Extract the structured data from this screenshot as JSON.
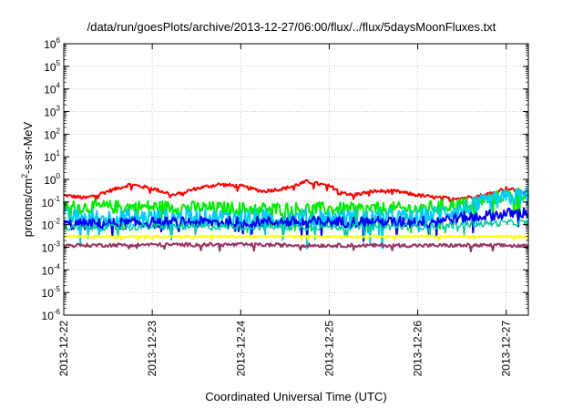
{
  "chart_data": {
    "type": "line",
    "title": "/data/run/goesPlots/archive/2013-12-27/06:00/flux/../flux/5daysMoonFluxes.txt",
    "xlabel": "Coordinated Universal Time (UTC)",
    "ylabel": {
      "prefix": "protons/cm",
      "sup": "2",
      "suffix": "-s-sr-MeV"
    },
    "y_scale": "log",
    "ylim": [
      1e-06,
      1000000.0
    ],
    "y_ticks": [
      {
        "base": "10",
        "exp": "-6",
        "value": 1e-06
      },
      {
        "base": "10",
        "exp": "-5",
        "value": 1e-05
      },
      {
        "base": "10",
        "exp": "-4",
        "value": 0.0001
      },
      {
        "base": "10",
        "exp": "-3",
        "value": 0.001
      },
      {
        "base": "10",
        "exp": "-2",
        "value": 0.01
      },
      {
        "base": "10",
        "exp": "-1",
        "value": 0.1
      },
      {
        "base": "10",
        "exp": "0",
        "value": 1
      },
      {
        "base": "10",
        "exp": "1",
        "value": 10
      },
      {
        "base": "10",
        "exp": "2",
        "value": 100
      },
      {
        "base": "10",
        "exp": "3",
        "value": 1000
      },
      {
        "base": "10",
        "exp": "4",
        "value": 10000
      },
      {
        "base": "10",
        "exp": "5",
        "value": 100000
      },
      {
        "base": "10",
        "exp": "6",
        "value": 1000000
      }
    ],
    "xlim": [
      "2013-12-22",
      "2013-12-27 06:00"
    ],
    "x_ticks": [
      "2013-12-22",
      "2013-12-23",
      "2013-12-24",
      "2013-12-25",
      "2013-12-26",
      "2013-12-27"
    ],
    "grid": true,
    "series": [
      {
        "color": "#ff0000",
        "width": 2,
        "anchors": [
          [
            "2013-12-22 00:00",
            0.2
          ],
          [
            "2013-12-22 06:00",
            0.15
          ],
          [
            "2013-12-22 12:00",
            0.3
          ],
          [
            "2013-12-22 18:00",
            0.6
          ],
          [
            "2013-12-23 00:00",
            0.4
          ],
          [
            "2013-12-23 06:00",
            0.2
          ],
          [
            "2013-12-23 12:00",
            0.4
          ],
          [
            "2013-12-23 18:00",
            0.6
          ],
          [
            "2013-12-24 00:00",
            0.5
          ],
          [
            "2013-12-24 06:00",
            0.3
          ],
          [
            "2013-12-24 12:00",
            0.4
          ],
          [
            "2013-12-24 18:00",
            0.8
          ],
          [
            "2013-12-25 00:00",
            0.5
          ],
          [
            "2013-12-25 06:00",
            0.2
          ],
          [
            "2013-12-25 12:00",
            0.3
          ],
          [
            "2013-12-25 18:00",
            0.3
          ],
          [
            "2013-12-26 00:00",
            0.2
          ],
          [
            "2013-12-26 06:00",
            0.15
          ],
          [
            "2013-12-26 12:00",
            0.15
          ],
          [
            "2013-12-26 18:00",
            0.2
          ],
          [
            "2013-12-27 00:00",
            0.4
          ],
          [
            "2013-12-27 06:00",
            0.25
          ]
        ],
        "noise": 0.08
      },
      {
        "color": "#00ee00",
        "width": 2,
        "anchors": [
          [
            "2013-12-22 00:00",
            0.06
          ],
          [
            "2013-12-23 00:00",
            0.06
          ],
          [
            "2013-12-24 00:00",
            0.05
          ],
          [
            "2013-12-25 00:00",
            0.05
          ],
          [
            "2013-12-26 00:00",
            0.05
          ],
          [
            "2013-12-26 12:00",
            0.08
          ],
          [
            "2013-12-27 00:00",
            0.2
          ],
          [
            "2013-12-27 06:00",
            0.25
          ]
        ],
        "noise": 0.3
      },
      {
        "color": "#00ccff",
        "width": 2,
        "anchors": [
          [
            "2013-12-22 00:00",
            0.02
          ],
          [
            "2013-12-23 00:00",
            0.02
          ],
          [
            "2013-12-24 00:00",
            0.02
          ],
          [
            "2013-12-25 00:00",
            0.02
          ],
          [
            "2013-12-26 00:00",
            0.02
          ],
          [
            "2013-12-26 12:00",
            0.05
          ],
          [
            "2013-12-27 00:00",
            0.15
          ],
          [
            "2013-12-27 06:00",
            0.2
          ]
        ],
        "noise": 0.4
      },
      {
        "color": "#0000ff",
        "width": 2,
        "anchors": [
          [
            "2013-12-22 00:00",
            0.01
          ],
          [
            "2013-12-23 00:00",
            0.012
          ],
          [
            "2013-12-24 00:00",
            0.013
          ],
          [
            "2013-12-25 00:00",
            0.013
          ],
          [
            "2013-12-26 00:00",
            0.013
          ],
          [
            "2013-12-26 12:00",
            0.02
          ],
          [
            "2013-12-27 00:00",
            0.03
          ],
          [
            "2013-12-27 06:00",
            0.035
          ]
        ],
        "noise": 0.25
      },
      {
        "color": "#00cc99",
        "width": 1.5,
        "anchors": [
          [
            "2013-12-22 00:00",
            0.007
          ],
          [
            "2013-12-23 00:00",
            0.008
          ],
          [
            "2013-12-24 00:00",
            0.008
          ],
          [
            "2013-12-25 00:00",
            0.008
          ],
          [
            "2013-12-26 00:00",
            0.008
          ],
          [
            "2013-12-26 12:00",
            0.01
          ],
          [
            "2013-12-27 00:00",
            0.012
          ],
          [
            "2013-12-27 06:00",
            0.012
          ]
        ],
        "noise": 0.15
      },
      {
        "color": "#ffff00",
        "width": 2,
        "anchors": [
          [
            "2013-12-22 00:00",
            0.003
          ],
          [
            "2013-12-23 00:00",
            0.003
          ],
          [
            "2013-12-24 00:00",
            0.003
          ],
          [
            "2013-12-25 00:00",
            0.003
          ],
          [
            "2013-12-26 00:00",
            0.003
          ],
          [
            "2013-12-27 00:00",
            0.003
          ],
          [
            "2013-12-27 06:00",
            0.003
          ]
        ],
        "noise": 0.05
      },
      {
        "color": "#993366",
        "width": 2,
        "anchors": [
          [
            "2013-12-22 00:00",
            0.0012
          ],
          [
            "2013-12-23 00:00",
            0.0013
          ],
          [
            "2013-12-24 00:00",
            0.0013
          ],
          [
            "2013-12-25 00:00",
            0.0012
          ],
          [
            "2013-12-26 00:00",
            0.0012
          ],
          [
            "2013-12-27 00:00",
            0.0012
          ],
          [
            "2013-12-27 06:00",
            0.0011
          ]
        ],
        "noise": 0.08
      }
    ]
  }
}
